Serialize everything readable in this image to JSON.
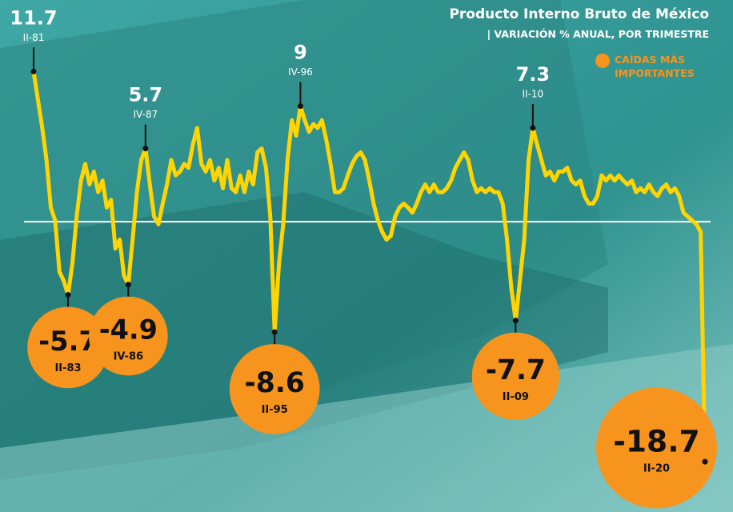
{
  "chart_data": {
    "type": "line",
    "title": "Producto Interno Bruto de México",
    "subtitle": "| VARIACIÓN % ANUAL, POR TRIMESTRE",
    "legend": "CAÍDAS MÁS IMPORTANTES",
    "legend_color": "#f7941d",
    "color": "#ffd400",
    "ylim": [
      -20,
      13
    ],
    "categories": [
      "II-81",
      null,
      null,
      null,
      null,
      null,
      null,
      null,
      "II-83",
      null,
      null,
      null,
      null,
      null,
      null,
      null,
      null,
      null,
      null,
      null,
      null,
      null,
      "IV-86",
      null,
      null,
      null,
      "IV-87",
      null,
      null,
      null,
      null,
      null,
      null,
      null,
      null,
      null,
      null,
      null,
      null,
      null,
      null,
      null,
      null,
      null,
      null,
      null,
      null,
      null,
      null,
      null,
      null,
      null,
      null,
      null,
      null,
      null,
      "II-95",
      null,
      null,
      null,
      null,
      null,
      "IV-96",
      null,
      null,
      null,
      null,
      null,
      null,
      null,
      null,
      null,
      null,
      null,
      null,
      null,
      null,
      null,
      null,
      null,
      null,
      null,
      null,
      null,
      null,
      null,
      null,
      null,
      null,
      null,
      null,
      null,
      null,
      null,
      null,
      null,
      null,
      null,
      null,
      null,
      null,
      null,
      null,
      null,
      null,
      null,
      null,
      null,
      null,
      null,
      null,
      null,
      "II-09",
      null,
      null,
      null,
      "II-10",
      null,
      null,
      null,
      null,
      null,
      null,
      null,
      null,
      null,
      null,
      null,
      null,
      null,
      null,
      null,
      null,
      null,
      null,
      null,
      null,
      null,
      null,
      null,
      null,
      null,
      null,
      null,
      null,
      null,
      null,
      null,
      null,
      null,
      null,
      null,
      null,
      null,
      null,
      null,
      "II-20"
    ],
    "values": [
      11.7,
      9.5,
      7.3,
      4.8,
      1.1,
      0.1,
      -3.9,
      -4.6,
      -5.7,
      -3.3,
      0.4,
      3.2,
      4.5,
      2.9,
      3.9,
      2.3,
      3.2,
      1.1,
      1.7,
      -2.1,
      -1.4,
      -4.2,
      -4.9,
      -1.4,
      2.3,
      4.8,
      5.7,
      2.9,
      0.4,
      -0.2,
      1.4,
      2.9,
      4.8,
      3.6,
      3.9,
      4.5,
      4.2,
      6.0,
      7.3,
      4.5,
      3.9,
      4.8,
      3.2,
      4.2,
      2.6,
      4.8,
      2.6,
      2.3,
      3.6,
      2.3,
      3.9,
      2.9,
      5.4,
      5.7,
      4.2,
      0.4,
      -8.6,
      -3.3,
      -0.2,
      4.8,
      7.9,
      6.7,
      9.0,
      7.9,
      7.0,
      7.6,
      7.3,
      7.9,
      6.4,
      4.5,
      2.3,
      2.3,
      2.6,
      3.6,
      4.5,
      5.1,
      5.4,
      4.8,
      3.2,
      1.4,
      0.1,
      -0.8,
      -1.4,
      -1.1,
      0.4,
      1.1,
      1.4,
      1.1,
      0.7,
      1.4,
      2.3,
      2.9,
      2.3,
      2.9,
      2.3,
      2.3,
      2.6,
      3.2,
      4.2,
      4.8,
      5.4,
      4.8,
      3.2,
      2.3,
      2.6,
      2.3,
      2.6,
      2.3,
      2.3,
      1.4,
      -1.4,
      -5.2,
      -7.7,
      -4.6,
      -1.4,
      4.8,
      7.3,
      6.0,
      4.8,
      3.6,
      3.9,
      3.2,
      3.9,
      3.9,
      4.2,
      3.2,
      2.9,
      3.2,
      2.0,
      1.4,
      1.4,
      2.0,
      3.6,
      3.2,
      3.6,
      3.2,
      3.6,
      3.2,
      2.9,
      3.2,
      2.3,
      2.6,
      2.3,
      2.9,
      2.3,
      2.0,
      2.6,
      2.9,
      2.3,
      2.6,
      2.0,
      0.7,
      0.4,
      0.1,
      -0.2,
      -0.8,
      -18.7
    ]
  }
}
